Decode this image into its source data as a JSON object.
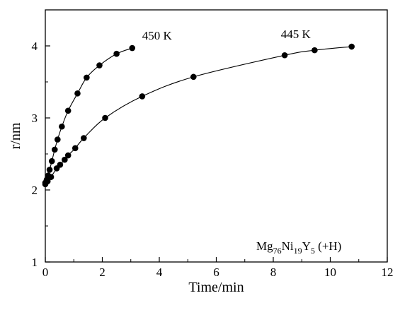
{
  "chart_data": {
    "type": "scatter",
    "title": "",
    "xlabel": "Time/min",
    "ylabel": "r/nm",
    "xlim": [
      0,
      12
    ],
    "ylim": [
      1,
      4.5
    ],
    "xticks": [
      0,
      2,
      4,
      6,
      8,
      10,
      12
    ],
    "yticks": [
      1,
      2,
      3,
      4
    ],
    "grid": false,
    "legend": "none",
    "series": [
      {
        "name": "450 K",
        "color": "#000000",
        "marker": "filled-circle",
        "fit_line": true,
        "points": [
          [
            0.0,
            2.1
          ],
          [
            0.05,
            2.14
          ],
          [
            0.1,
            2.2
          ],
          [
            0.15,
            2.28
          ],
          [
            0.23,
            2.4
          ],
          [
            0.33,
            2.56
          ],
          [
            0.43,
            2.7
          ],
          [
            0.58,
            2.88
          ],
          [
            0.8,
            3.1
          ],
          [
            1.13,
            3.34
          ],
          [
            1.45,
            3.56
          ],
          [
            1.9,
            3.73
          ],
          [
            2.5,
            3.89
          ],
          [
            3.05,
            3.97
          ]
        ]
      },
      {
        "name": "445 K",
        "color": "#000000",
        "marker": "filled-circle",
        "fit_line": true,
        "points": [
          [
            0.0,
            2.08
          ],
          [
            0.08,
            2.12
          ],
          [
            0.2,
            2.18
          ],
          [
            0.4,
            2.3
          ],
          [
            0.52,
            2.35
          ],
          [
            0.68,
            2.42
          ],
          [
            0.8,
            2.48
          ],
          [
            1.05,
            2.58
          ],
          [
            1.35,
            2.72
          ],
          [
            2.1,
            3.0
          ],
          [
            3.4,
            3.3
          ],
          [
            5.2,
            3.57
          ],
          [
            8.4,
            3.87
          ],
          [
            9.45,
            3.94
          ],
          [
            10.75,
            3.99
          ]
        ]
      }
    ],
    "annotation": {
      "parts": [
        {
          "text": "Mg",
          "sub": false
        },
        {
          "text": "76",
          "sub": true
        },
        {
          "text": "Ni",
          "sub": false
        },
        {
          "text": "19",
          "sub": true
        },
        {
          "text": "Y",
          "sub": false
        },
        {
          "text": "5",
          "sub": true
        },
        {
          "text": "   (+H)",
          "sub": false
        }
      ],
      "placement": "bottom-right"
    }
  }
}
